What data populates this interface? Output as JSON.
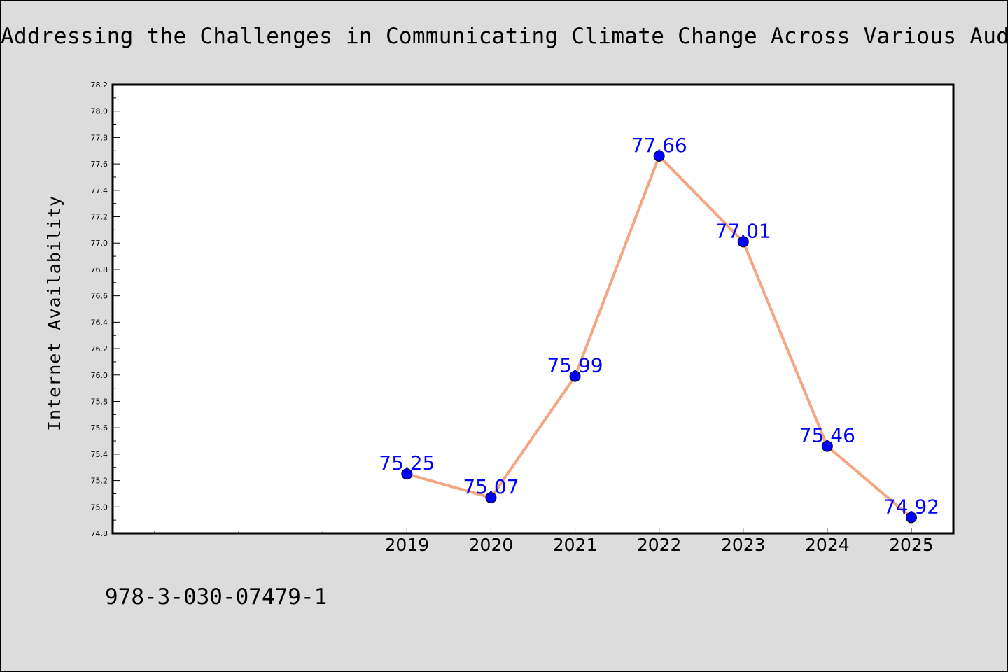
{
  "title": "Addressing the Challenges in Communicating Climate Change Across Various Audienc",
  "footer_text": "978-3-030-07479-1",
  "colors": {
    "background": "#dcdcdc",
    "plot_background": "#ffffff",
    "line": "#f4a582",
    "marker": "#0000ff",
    "data_label": "#0000ff"
  },
  "chart_data": {
    "type": "line",
    "title": "Addressing the Challenges in Communicating Climate Change Across Various Audienc",
    "xlabel": "",
    "ylabel": "Internet Availability",
    "x": [
      "2019",
      "2020",
      "2021",
      "2022",
      "2023",
      "2024",
      "2025"
    ],
    "x_axis_slots": 10,
    "series": [
      {
        "values": [
          75.25,
          75.07,
          75.99,
          77.66,
          77.01,
          75.46,
          74.92
        ]
      }
    ],
    "data_labels": [
      "75.25",
      "75.07",
      "75.99",
      "77.66",
      "77.01",
      "75.46",
      "74.92"
    ],
    "ylim": [
      74.8,
      78.2
    ],
    "yticks": [
      "74.8",
      "75.0",
      "75.2",
      "75.4",
      "75.6",
      "75.8",
      "76.0",
      "76.2",
      "76.4",
      "76.6",
      "76.8",
      "77.0",
      "77.2",
      "77.4",
      "77.6",
      "77.8",
      "78.0",
      "78.2"
    ],
    "grid": false,
    "legend": "none"
  }
}
